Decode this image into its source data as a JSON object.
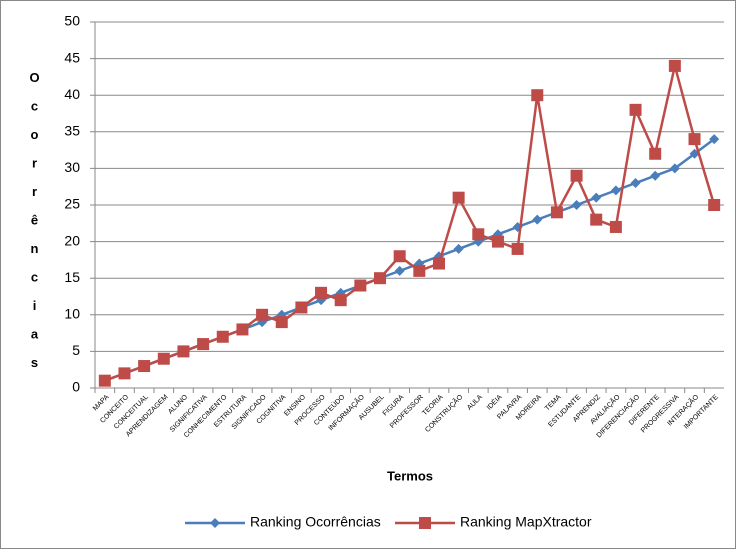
{
  "chart_data": {
    "type": "line",
    "x_label": "Termos",
    "y_label": "Ocorrências",
    "categories": [
      "MAPA",
      "CONCEITO",
      "CONCEITUAL",
      "APRENDIZAGEM",
      "ALUNO",
      "SIGNIFICATIVA",
      "CONHECIMENTO",
      "ESTRUTURA",
      "SIGNIFICADO",
      "COGNITIVA",
      "ENSINO",
      "PROCESSO",
      "CONTEÚDO",
      "INFORMAÇÃO",
      "AUSUBEL",
      "FIGURA",
      "PROFESSOR",
      "TEORIA",
      "CONSTRUÇÃO",
      "AULA",
      "IDÉIA",
      "PALAVRA",
      "MOREIRA",
      "TEMA",
      "ESTUDANTE",
      "APRENDIZ",
      "AVALIAÇÃO",
      "DIFERENCIAÇÃO",
      "DIFERENTE",
      "PROGRESSIVA",
      "INTERAÇÃO",
      "IMPORTANTE"
    ],
    "series": [
      {
        "name": "Ranking Ocorrências",
        "color": "#4a7ebb",
        "marker": "diamond",
        "values": [
          1,
          2,
          3,
          4,
          5,
          6,
          7,
          8,
          9,
          10,
          11,
          12,
          13,
          14,
          15,
          16,
          17,
          18,
          19,
          20,
          21,
          22,
          23,
          24,
          25,
          26,
          27,
          28,
          29,
          30,
          32,
          34
        ]
      },
      {
        "name": "Ranking MapXtractor",
        "color": "#be4b48",
        "marker": "square",
        "values": [
          1,
          2,
          3,
          4,
          5,
          6,
          7,
          8,
          10,
          9,
          11,
          13,
          12,
          14,
          15,
          18,
          16,
          17,
          26,
          21,
          20,
          19,
          40,
          24,
          29,
          23,
          22,
          38,
          32,
          44,
          34,
          25
        ]
      }
    ],
    "ylim": [
      0,
      50
    ],
    "yticks": [
      0,
      5,
      10,
      15,
      20,
      25,
      30,
      35,
      40,
      45,
      50
    ],
    "grid": true,
    "legend": "bottom"
  }
}
